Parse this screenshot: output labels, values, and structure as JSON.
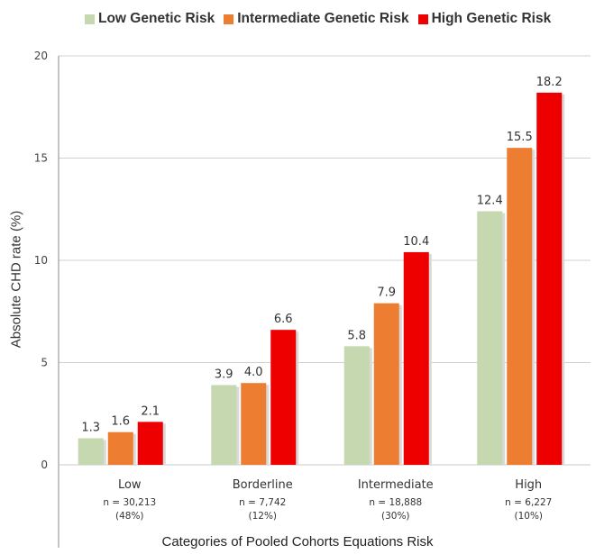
{
  "chart_data": {
    "type": "bar",
    "xlabel": "Categories of Pooled Cohorts Equations Risk",
    "ylabel": "Absolute  CHD rate (%)",
    "ylim": [
      0,
      20
    ],
    "yticks": [
      0,
      5,
      10,
      15,
      20
    ],
    "grid": true,
    "legend_position": "top",
    "categories": [
      {
        "name": "Low",
        "n": "n = 30,213",
        "pct": "(48%)"
      },
      {
        "name": "Borderline",
        "n": "n = 7,742",
        "pct": "(12%)"
      },
      {
        "name": "Intermediate",
        "n": "n = 18,888",
        "pct": "(30%)"
      },
      {
        "name": "High",
        "n": "n = 6,227",
        "pct": "(10%)"
      }
    ],
    "series": [
      {
        "name": "Low Genetic Risk",
        "color": "#c5d8b0",
        "values": [
          1.3,
          3.9,
          5.8,
          12.4
        ],
        "labels": [
          "1.3",
          "3.9",
          "5.8",
          "12.4"
        ]
      },
      {
        "name": "Intermediate Genetic Risk",
        "color": "#ed7d31",
        "values": [
          1.6,
          4.0,
          7.9,
          15.5
        ],
        "labels": [
          "1.6",
          "4.0",
          "7.9",
          "15.5"
        ]
      },
      {
        "name": "High Genetic Risk",
        "color": "#ee0000",
        "values": [
          2.1,
          6.6,
          10.4,
          18.2
        ],
        "labels": [
          "2.1",
          "6.6",
          "10.4",
          "18.2"
        ]
      }
    ]
  }
}
